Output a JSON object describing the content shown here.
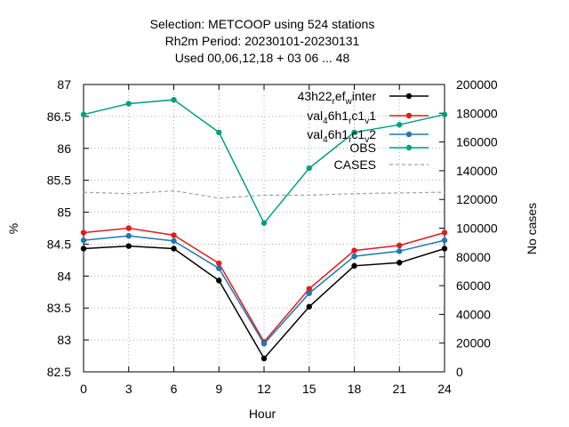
{
  "chart_data": {
    "type": "line",
    "title_lines": [
      "Selection: METCOOP using   524 stations",
      "Rh2m   Period: 20230101-20230131",
      "Used  00,06,12,18  + 03 06 ... 48"
    ],
    "xlabel": "Hour",
    "ylabel": "%",
    "y2label": "No cases",
    "x": [
      0,
      3,
      6,
      9,
      12,
      15,
      18,
      21,
      24
    ],
    "xlim": [
      0,
      24
    ],
    "ylim": [
      82.5,
      87
    ],
    "y2lim": [
      0,
      200000
    ],
    "x_ticks": [
      "0",
      "3",
      "6",
      "9",
      "12",
      "15",
      "18",
      "21",
      "24"
    ],
    "y_ticks": [
      "82.5",
      "83",
      "83.5",
      "84",
      "84.5",
      "85",
      "85.5",
      "86",
      "86.5",
      "87"
    ],
    "y2_ticks": [
      "0",
      "20000",
      "40000",
      "60000",
      "80000",
      "100000",
      "120000",
      "140000",
      "160000",
      "180000",
      "200000"
    ],
    "grid": true,
    "legend_position": "top-right",
    "series": [
      {
        "name": "43h22_ref_winter",
        "name_parts": [
          [
            "43h22",
            ""
          ],
          [
            "r",
            "sub"
          ],
          [
            "ef",
            ""
          ],
          [
            "w",
            "sub"
          ],
          [
            "inter",
            ""
          ]
        ],
        "color": "#000000",
        "axis": "y",
        "values": [
          84.43,
          84.47,
          84.43,
          83.93,
          82.71,
          83.52,
          84.16,
          84.21,
          84.43
        ]
      },
      {
        "name": "val_46h1_rc1_v1",
        "name_parts": [
          [
            "val",
            ""
          ],
          [
            "4",
            "sub"
          ],
          [
            "6h1",
            ""
          ],
          [
            "r",
            "sub"
          ],
          [
            "c1",
            ""
          ],
          [
            "v",
            "sub"
          ],
          [
            "1",
            ""
          ]
        ],
        "color": "#e41a1c",
        "axis": "y",
        "values": [
          84.68,
          84.75,
          84.64,
          84.2,
          82.97,
          83.8,
          84.4,
          84.48,
          84.68
        ]
      },
      {
        "name": "val_46h1_rc1_v2",
        "name_parts": [
          [
            "val",
            ""
          ],
          [
            "4",
            "sub"
          ],
          [
            "6h1",
            ""
          ],
          [
            "r",
            "sub"
          ],
          [
            "c1",
            ""
          ],
          [
            "v",
            "sub"
          ],
          [
            "2",
            ""
          ]
        ],
        "color": "#1f78b4",
        "axis": "y",
        "values": [
          84.56,
          84.63,
          84.55,
          84.12,
          82.94,
          83.73,
          84.31,
          84.39,
          84.56
        ]
      },
      {
        "name": "OBS",
        "name_parts": [
          [
            "OBS",
            ""
          ]
        ],
        "color": "#00a080",
        "axis": "y",
        "values": [
          86.53,
          86.7,
          86.76,
          86.25,
          84.83,
          85.69,
          86.25,
          86.37,
          86.53
        ]
      },
      {
        "name": "CASES",
        "name_parts": [
          [
            "CASES",
            ""
          ]
        ],
        "color": "#a0a0a0",
        "axis": "y2",
        "dashed": true,
        "values": [
          125000,
          124000,
          126000,
          121000,
          123000,
          123000,
          124000,
          124500,
          125000
        ]
      }
    ]
  }
}
